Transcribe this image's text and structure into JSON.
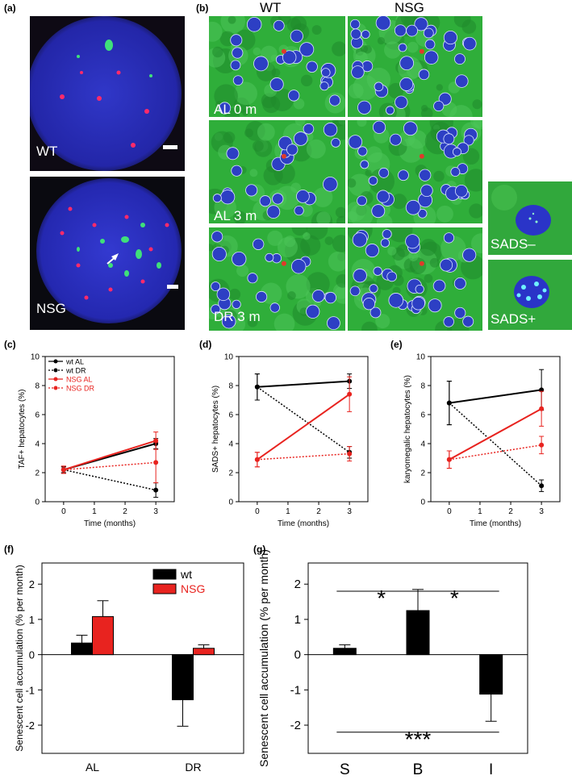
{
  "panels": {
    "a": {
      "letter": "(a)",
      "images": [
        {
          "label": "WT"
        },
        {
          "label": "NSG"
        }
      ]
    },
    "b": {
      "letter": "(b)",
      "col_headers": [
        "WT",
        "NSG"
      ],
      "row_labels": [
        "AL 0 m",
        "AL 3 m",
        "DR 3 m"
      ],
      "insets": [
        {
          "label": "SADS–"
        },
        {
          "label": "SADS+"
        }
      ]
    }
  },
  "colors": {
    "black": "#000000",
    "red": "#e8231f",
    "nucleus_blue": "#2d3fc4",
    "tissue_green": "#2fae3a",
    "dapi_blue": "#2326b0"
  },
  "chart_data": [
    {
      "id": "c",
      "letter": "(c)",
      "type": "line",
      "xlabel": "Time (months)",
      "ylabel": "TAF+ hepatocytes (%)",
      "xlim": [
        -0.6,
        3.6
      ],
      "ylim": [
        0,
        10
      ],
      "xticks": [
        "0",
        "1",
        "2",
        "3"
      ],
      "yticks": [
        "0",
        "2",
        "4",
        "6",
        "8",
        "10"
      ],
      "legend": "top-left",
      "series": [
        {
          "name": "wt AL",
          "color": "#000000",
          "style": "solid",
          "x": [
            0,
            3
          ],
          "y": [
            2.2,
            4.0
          ],
          "err": [
            0.2,
            0.35
          ]
        },
        {
          "name": "wt DR",
          "color": "#000000",
          "style": "dotted",
          "x": [
            0,
            3
          ],
          "y": [
            2.2,
            0.8
          ],
          "err": [
            0.2,
            0.5
          ]
        },
        {
          "name": "NSG AL",
          "color": "#e8231f",
          "style": "solid",
          "x": [
            0,
            3
          ],
          "y": [
            2.2,
            4.2
          ],
          "err": [
            0.25,
            0.6
          ]
        },
        {
          "name": "NSG DR",
          "color": "#e8231f",
          "style": "dotted",
          "x": [
            0,
            3
          ],
          "y": [
            2.2,
            2.7
          ],
          "err": [
            0.25,
            1.4
          ]
        }
      ]
    },
    {
      "id": "d",
      "letter": "(d)",
      "type": "line",
      "xlabel": "Time (months)",
      "ylabel": "SADS+ hepatocytes (%)",
      "xlim": [
        -0.6,
        3.6
      ],
      "ylim": [
        0,
        10
      ],
      "xticks": [
        "0",
        "1",
        "2",
        "3"
      ],
      "yticks": [
        "0",
        "2",
        "4",
        "6",
        "8",
        "10"
      ],
      "series": [
        {
          "color": "#000000",
          "style": "solid",
          "x": [
            0,
            3
          ],
          "y": [
            7.9,
            8.3
          ],
          "err": [
            0.9,
            0.5
          ]
        },
        {
          "color": "#000000",
          "style": "dotted",
          "x": [
            0,
            3
          ],
          "y": [
            7.9,
            3.4
          ],
          "err": [
            0.9,
            0.4
          ]
        },
        {
          "color": "#e8231f",
          "style": "solid",
          "x": [
            0,
            3
          ],
          "y": [
            2.9,
            7.4
          ],
          "err": [
            0.5,
            1.2
          ]
        },
        {
          "color": "#e8231f",
          "style": "dotted",
          "x": [
            0,
            3
          ],
          "y": [
            2.9,
            3.3
          ],
          "err": [
            0.5,
            0.5
          ]
        }
      ]
    },
    {
      "id": "e",
      "letter": "(e)",
      "type": "line",
      "xlabel": "Time (months)",
      "ylabel": "karyomegalic hepatocytes (%)",
      "xlim": [
        -0.6,
        3.6
      ],
      "ylim": [
        0,
        10
      ],
      "xticks": [
        "0",
        "1",
        "2",
        "3"
      ],
      "yticks": [
        "0",
        "2",
        "4",
        "6",
        "8",
        "10"
      ],
      "series": [
        {
          "color": "#000000",
          "style": "solid",
          "x": [
            0,
            3
          ],
          "y": [
            6.8,
            7.7
          ],
          "err": [
            1.5,
            1.4
          ]
        },
        {
          "color": "#000000",
          "style": "dotted",
          "x": [
            0,
            3
          ],
          "y": [
            6.8,
            1.1
          ],
          "err": [
            1.5,
            0.4
          ]
        },
        {
          "color": "#e8231f",
          "style": "solid",
          "x": [
            0,
            3
          ],
          "y": [
            2.9,
            6.4
          ],
          "err": [
            0.6,
            1.2
          ]
        },
        {
          "color": "#e8231f",
          "style": "dotted",
          "x": [
            0,
            3
          ],
          "y": [
            2.9,
            3.9
          ],
          "err": [
            0.6,
            0.6
          ]
        }
      ]
    },
    {
      "id": "f",
      "letter": "(f)",
      "type": "bar",
      "ylabel": "Senescent cell accumulation (% per month)",
      "categories": [
        "AL",
        "DR"
      ],
      "ylim": [
        -2.8,
        2.6
      ],
      "yticks": [
        "-2",
        "-1",
        "0",
        "1",
        "2"
      ],
      "legend": "top-right",
      "series": [
        {
          "name": "wt",
          "color": "#000000",
          "values": [
            0.33,
            -1.28
          ],
          "err": [
            0.22,
            0.75
          ]
        },
        {
          "name": "NSG",
          "color": "#e8231f",
          "values": [
            1.08,
            0.18
          ],
          "err": [
            0.45,
            0.1
          ]
        }
      ]
    },
    {
      "id": "g",
      "letter": "(g)",
      "type": "bar",
      "ylabel": "Senescent cell accumulation (% per month)",
      "categories": [
        "S",
        "B",
        "I"
      ],
      "ylim": [
        -2.8,
        2.6
      ],
      "yticks": [
        "-2",
        "-1",
        "0",
        "1",
        "2"
      ],
      "series": [
        {
          "color": "#000000",
          "values": [
            0.18,
            1.25,
            -1.12
          ],
          "err": [
            0.1,
            0.6,
            0.77
          ]
        }
      ],
      "annotations": [
        {
          "from": "S",
          "to": "B",
          "text": "*",
          "y": 1.8
        },
        {
          "from": "B",
          "to": "I",
          "text": "*",
          "y": 1.8
        },
        {
          "from": "S",
          "to": "I",
          "text": "***",
          "y": -2.2
        }
      ]
    }
  ]
}
